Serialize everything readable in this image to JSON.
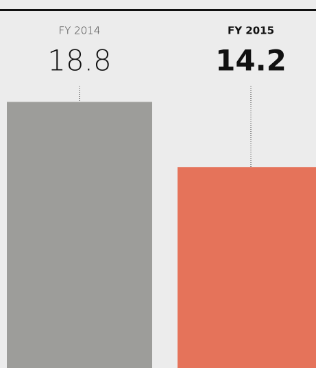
{
  "chart_data": {
    "type": "bar",
    "categories": [
      "FY 2014",
      "FY 2015"
    ],
    "values": [
      18.8,
      14.2
    ],
    "colors": [
      "#9d9d9a",
      "#e5735a"
    ],
    "ylim": [
      0,
      26
    ]
  }
}
